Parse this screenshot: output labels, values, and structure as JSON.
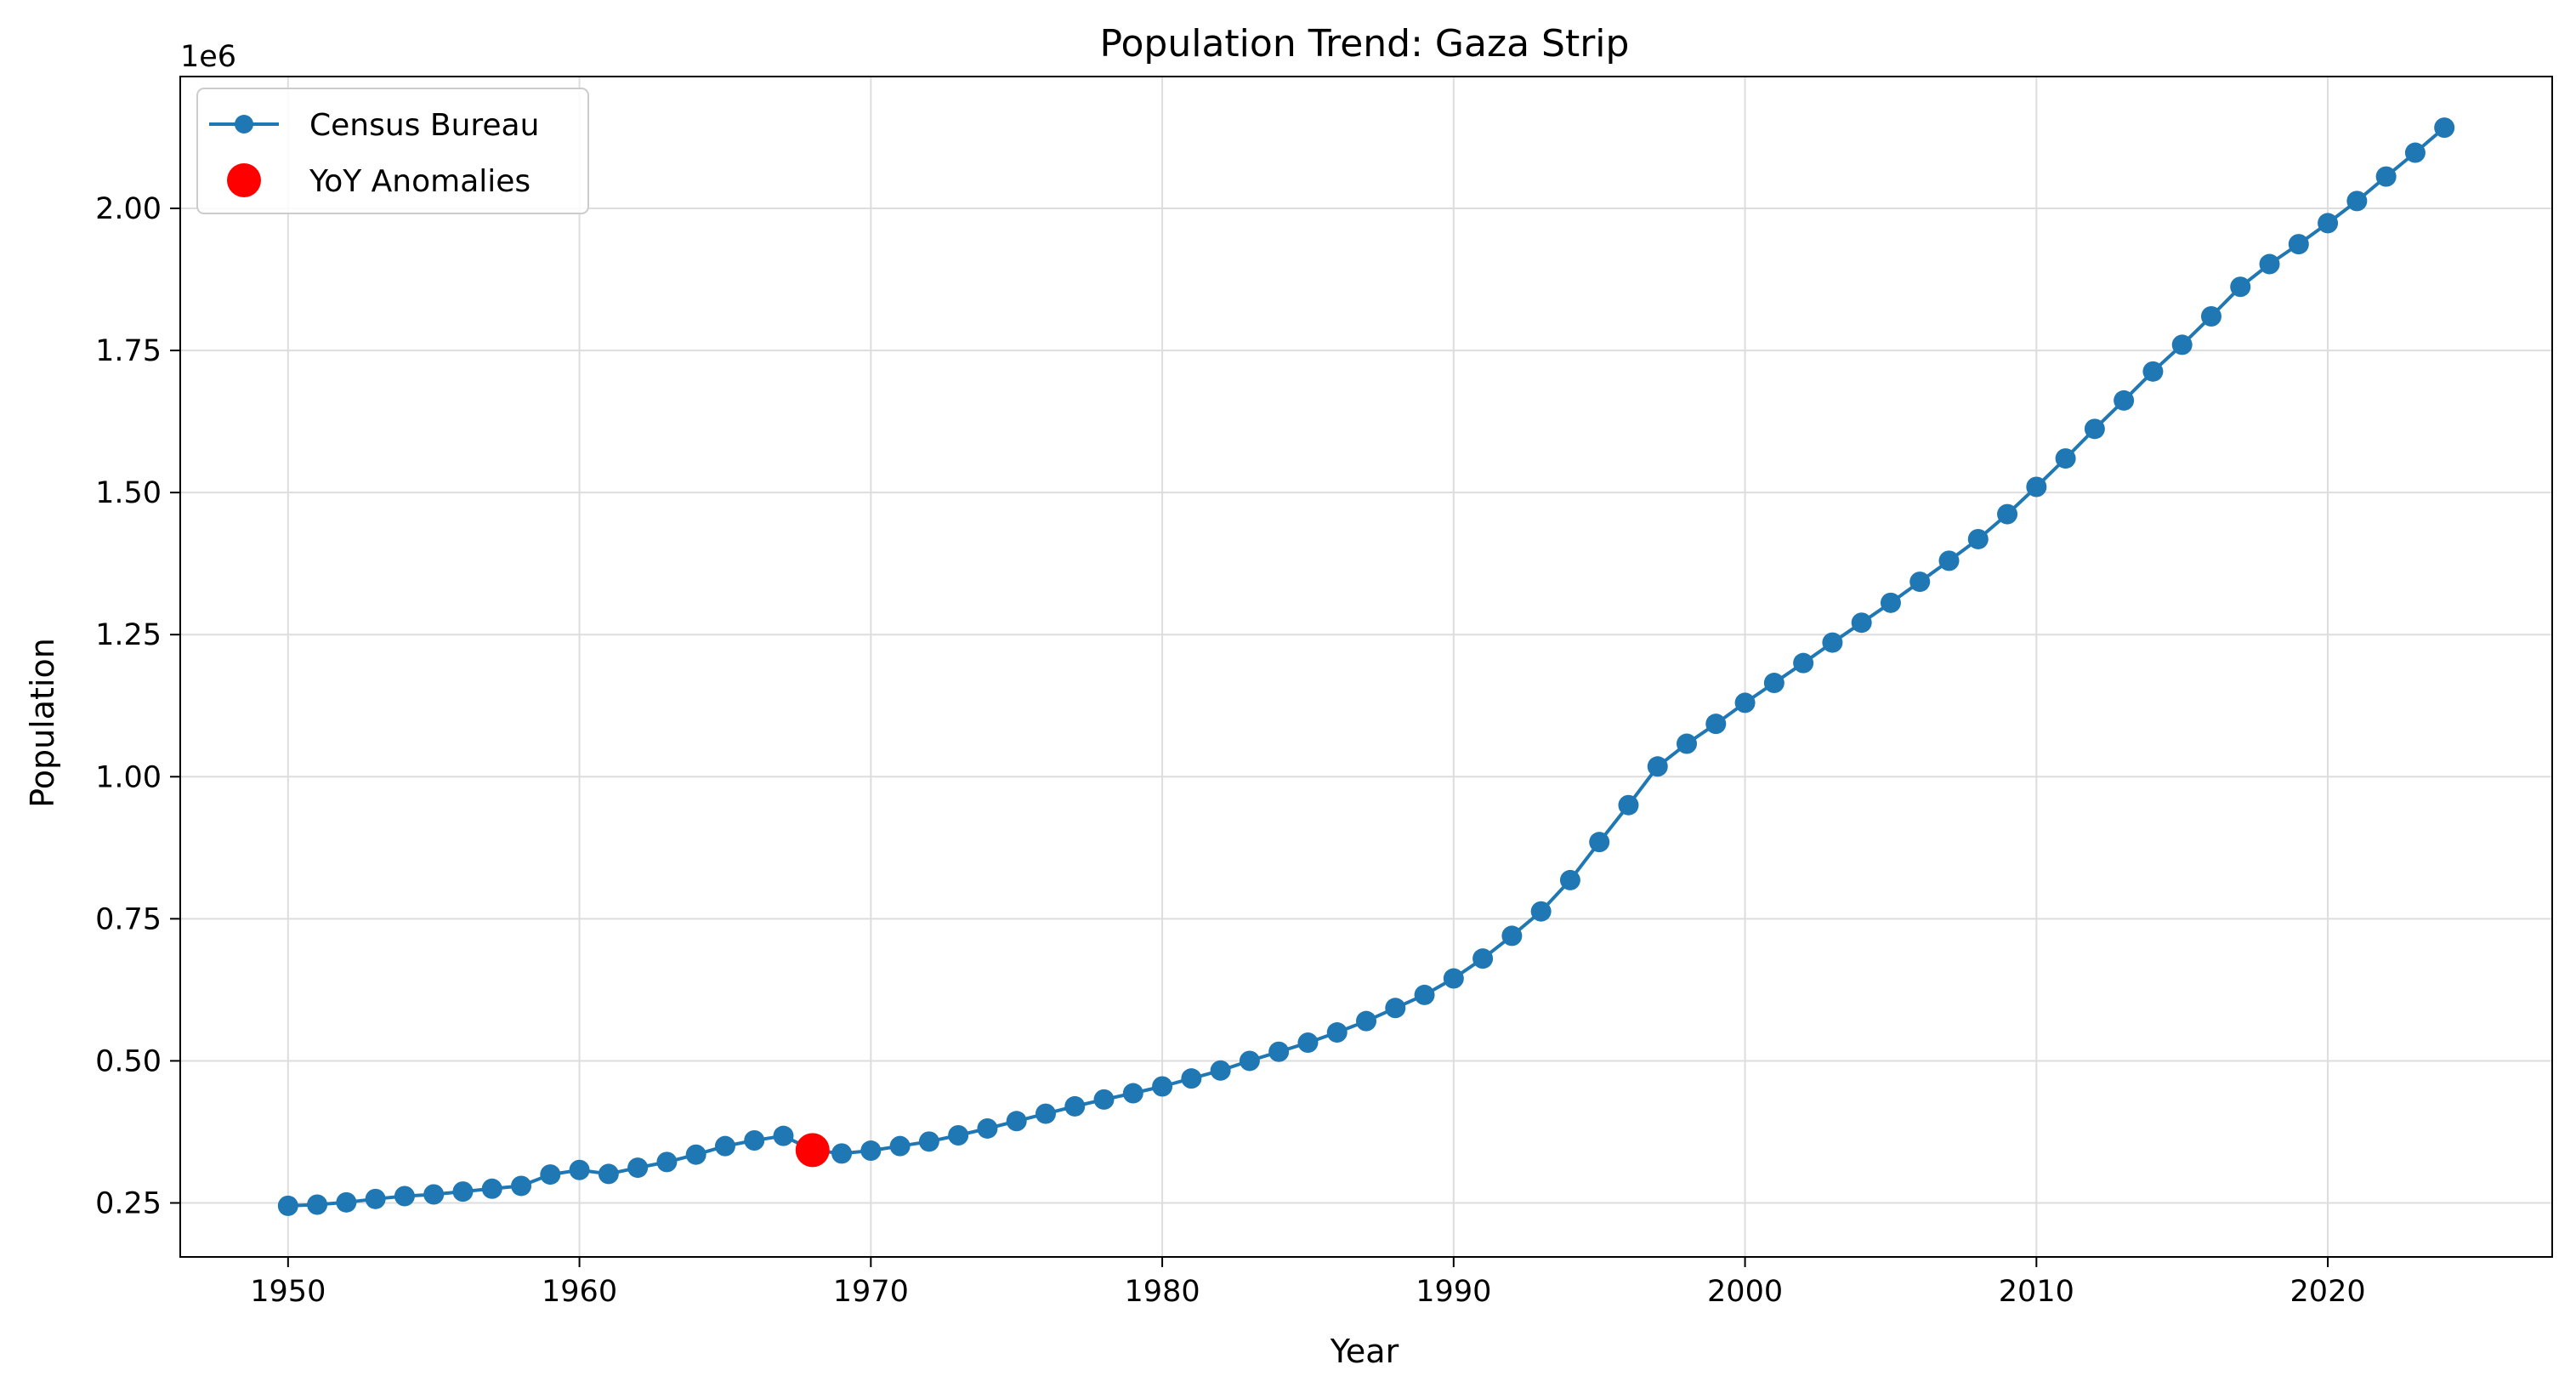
{
  "chart_data": {
    "type": "line",
    "title": "Population Trend: Gaza Strip",
    "xlabel": "Year",
    "ylabel": "Population",
    "y_offset_label": "1e6",
    "xlim": [
      1946.3,
      2027.7
    ],
    "ylim": [
      0.155,
      2.232
    ],
    "x_ticks": [
      1950,
      1960,
      1970,
      1980,
      1990,
      2000,
      2010,
      2020
    ],
    "x_tick_labels": [
      "1950",
      "1960",
      "1970",
      "1980",
      "1990",
      "2000",
      "2010",
      "2020"
    ],
    "y_ticks": [
      0.25,
      0.5,
      0.75,
      1.0,
      1.25,
      1.5,
      1.75,
      2.0
    ],
    "y_tick_labels": [
      "0.25",
      "0.50",
      "0.75",
      "1.00",
      "1.25",
      "1.50",
      "1.75",
      "2.00"
    ],
    "grid": true,
    "legend_position": "top-left",
    "series": [
      {
        "name": "Census Bureau",
        "color": "#1f77b4",
        "style": "line-with-markers",
        "x": [
          1950,
          1951,
          1952,
          1953,
          1954,
          1955,
          1956,
          1957,
          1958,
          1959,
          1960,
          1961,
          1962,
          1963,
          1964,
          1965,
          1966,
          1967,
          1968,
          1969,
          1970,
          1971,
          1972,
          1973,
          1974,
          1975,
          1976,
          1977,
          1978,
          1979,
          1980,
          1981,
          1982,
          1983,
          1984,
          1985,
          1986,
          1987,
          1988,
          1989,
          1990,
          1991,
          1992,
          1993,
          1994,
          1995,
          1996,
          1997,
          1998,
          1999,
          2000,
          2001,
          2002,
          2003,
          2004,
          2005,
          2006,
          2007,
          2008,
          2009,
          2010,
          2011,
          2012,
          2013,
          2014,
          2015,
          2016,
          2017,
          2018,
          2019,
          2020,
          2021,
          2022,
          2023,
          2024
        ],
        "y": [
          0.245,
          0.247,
          0.251,
          0.257,
          0.262,
          0.265,
          0.27,
          0.275,
          0.28,
          0.3,
          0.308,
          0.301,
          0.312,
          0.322,
          0.335,
          0.35,
          0.36,
          0.368,
          0.343,
          0.337,
          0.342,
          0.35,
          0.358,
          0.369,
          0.381,
          0.394,
          0.407,
          0.42,
          0.432,
          0.443,
          0.455,
          0.469,
          0.483,
          0.5,
          0.516,
          0.532,
          0.55,
          0.57,
          0.593,
          0.616,
          0.645,
          0.68,
          0.72,
          0.763,
          0.818,
          0.885,
          0.95,
          1.018,
          1.058,
          1.093,
          1.13,
          1.165,
          1.2,
          1.236,
          1.271,
          1.306,
          1.343,
          1.38,
          1.418,
          1.462,
          1.51,
          1.56,
          1.612,
          1.662,
          1.713,
          1.76,
          1.81,
          1.862,
          1.902,
          1.937,
          1.974,
          2.013,
          2.056,
          2.098,
          2.142
        ]
      },
      {
        "name": "YoY Anomalies",
        "color": "#ff0000",
        "style": "scatter",
        "x": [
          1968
        ],
        "y": [
          0.343
        ]
      }
    ]
  }
}
